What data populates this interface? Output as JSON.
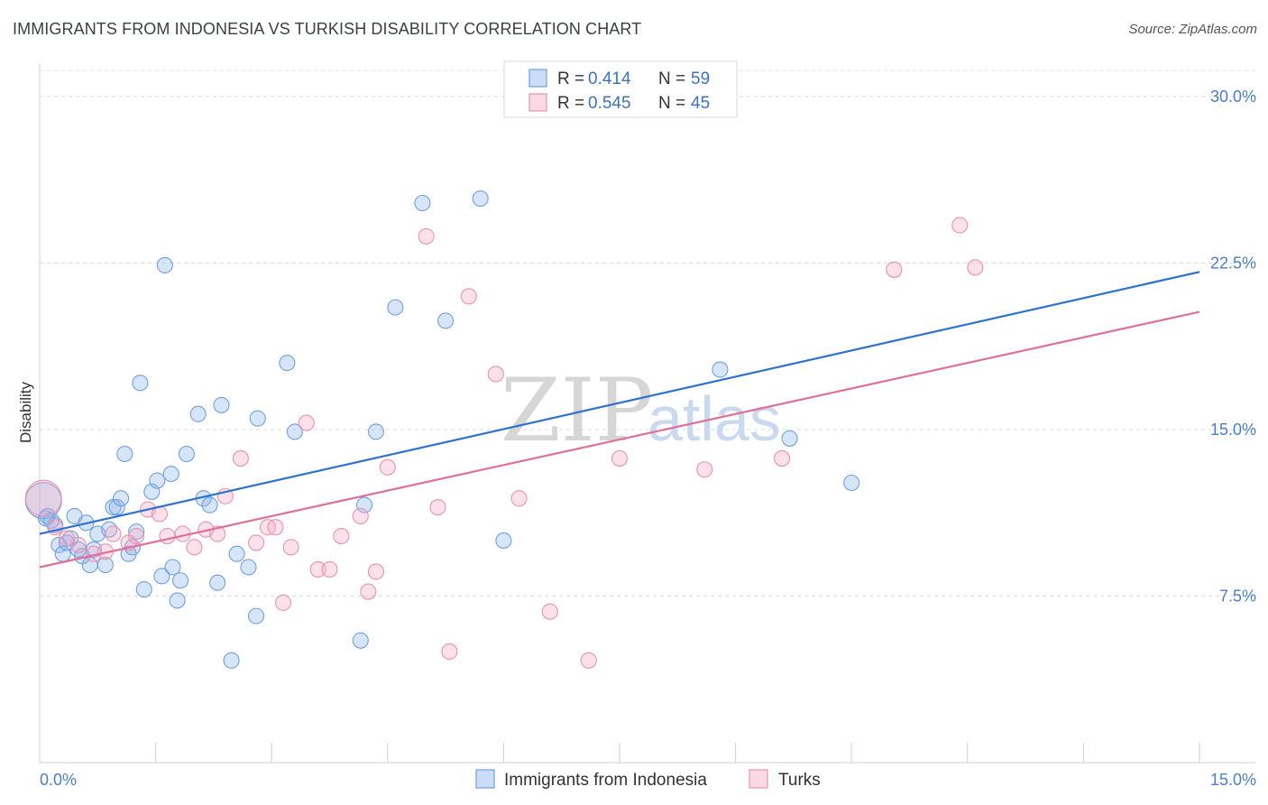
{
  "title": "IMMIGRANTS FROM INDONESIA VS TURKISH DISABILITY CORRELATION CHART",
  "source": "Source: ZipAtlas.com",
  "watermark": {
    "zip": "ZIP",
    "atlas": "atlas"
  },
  "colors": {
    "blue": "#6fa0e0",
    "blue_fill": "rgba(140,180,235,0.35)",
    "blue_line": "#2e72cf",
    "pink": "#e992b0",
    "pink_fill": "rgba(245,170,195,0.35)",
    "pink_line": "#e0709a"
  },
  "legend_top": {
    "rows": [
      {
        "r_label": "R =",
        "r_value": "0.414",
        "n_label": "N =",
        "n_value": "59"
      },
      {
        "r_label": "R =",
        "r_value": "0.545",
        "n_label": "N =",
        "n_value": "45"
      }
    ]
  },
  "legend_bottom": [
    "Immigrants from Indonesia",
    "Turks"
  ],
  "chart_data": {
    "type": "scatter",
    "title": "IMMIGRANTS FROM INDONESIA VS TURKISH DISABILITY CORRELATION CHART",
    "xlabel": "",
    "ylabel": "Disability",
    "xlim": [
      0,
      15
    ],
    "ylim": [
      0,
      31.5
    ],
    "x_tick_labels": [
      "0.0%",
      "15.0%"
    ],
    "y_ticks": [
      7.5,
      15.0,
      22.5,
      30.0
    ],
    "y_tick_labels": [
      "7.5%",
      "15.0%",
      "22.5%",
      "30.0%"
    ],
    "grid": true,
    "legend_position": "bottom",
    "series": [
      {
        "name": "Immigrants from Indonesia",
        "r": 0.414,
        "n": 59,
        "trend": {
          "x": [
            0,
            15
          ],
          "y": [
            10.3,
            22.1
          ]
        },
        "points": [
          [
            0.05,
            11.8,
            3
          ],
          [
            0.1,
            11.1,
            1
          ],
          [
            0.2,
            10.7,
            1
          ],
          [
            0.25,
            9.8,
            1
          ],
          [
            0.3,
            9.4,
            1
          ],
          [
            0.35,
            9.9,
            1
          ],
          [
            0.45,
            11.1,
            1
          ],
          [
            0.5,
            9.6,
            1
          ],
          [
            0.55,
            9.3,
            1
          ],
          [
            0.6,
            10.8,
            1
          ],
          [
            0.65,
            8.9,
            1
          ],
          [
            0.7,
            9.6,
            1
          ],
          [
            0.75,
            10.3,
            1
          ],
          [
            0.85,
            8.9,
            1
          ],
          [
            0.9,
            10.5,
            1
          ],
          [
            0.95,
            11.5,
            1
          ],
          [
            1.0,
            11.5,
            1
          ],
          [
            1.05,
            11.9,
            1
          ],
          [
            1.1,
            13.9,
            1
          ],
          [
            1.15,
            9.4,
            1
          ],
          [
            1.2,
            9.7,
            1
          ],
          [
            1.25,
            10.4,
            1
          ],
          [
            1.3,
            17.1,
            1
          ],
          [
            1.35,
            7.8,
            1
          ],
          [
            1.45,
            12.2,
            1
          ],
          [
            1.52,
            12.7,
            1
          ],
          [
            1.58,
            8.4,
            1
          ],
          [
            1.62,
            22.4,
            1
          ],
          [
            1.7,
            13.0,
            1
          ],
          [
            1.72,
            8.8,
            1
          ],
          [
            1.78,
            7.3,
            1
          ],
          [
            1.82,
            8.2,
            1
          ],
          [
            1.9,
            13.9,
            1
          ],
          [
            2.05,
            15.7,
            1
          ],
          [
            2.12,
            11.9,
            1
          ],
          [
            2.2,
            11.6,
            1
          ],
          [
            2.3,
            8.1,
            1
          ],
          [
            2.35,
            16.1,
            1
          ],
          [
            2.48,
            4.6,
            1
          ],
          [
            2.55,
            9.4,
            1
          ],
          [
            2.7,
            8.8,
            1
          ],
          [
            2.8,
            6.6,
            1
          ],
          [
            2.82,
            15.5,
            1
          ],
          [
            3.2,
            18.0,
            1
          ],
          [
            3.3,
            14.9,
            1
          ],
          [
            4.15,
            5.5,
            1
          ],
          [
            4.2,
            11.6,
            1
          ],
          [
            4.35,
            14.9,
            1
          ],
          [
            4.6,
            20.5,
            1
          ],
          [
            4.95,
            25.2,
            1
          ],
          [
            5.25,
            19.9,
            1
          ],
          [
            5.7,
            25.4,
            1
          ],
          [
            6.0,
            10.0,
            1
          ],
          [
            8.8,
            17.7,
            1
          ],
          [
            9.7,
            14.6,
            1
          ],
          [
            10.5,
            12.6,
            1
          ],
          [
            0.08,
            11.0,
            1
          ],
          [
            0.4,
            10.1,
            1
          ],
          [
            0.15,
            10.9,
            1
          ]
        ]
      },
      {
        "name": "Turks",
        "r": 0.545,
        "n": 45,
        "trend": {
          "x": [
            0,
            15
          ],
          "y": [
            8.8,
            20.3
          ]
        },
        "points": [
          [
            0.05,
            11.9,
            3
          ],
          [
            0.2,
            10.6,
            1
          ],
          [
            0.5,
            9.8,
            1
          ],
          [
            0.7,
            9.4,
            1
          ],
          [
            0.95,
            10.3,
            1
          ],
          [
            1.15,
            9.9,
            1
          ],
          [
            1.25,
            10.2,
            1
          ],
          [
            1.4,
            11.4,
            1
          ],
          [
            1.55,
            11.2,
            1
          ],
          [
            1.65,
            10.2,
            1
          ],
          [
            1.85,
            10.3,
            1
          ],
          [
            2.0,
            9.7,
            1
          ],
          [
            2.15,
            10.5,
            1
          ],
          [
            2.3,
            10.3,
            1
          ],
          [
            2.4,
            12.0,
            1
          ],
          [
            2.6,
            13.7,
            1
          ],
          [
            2.8,
            9.9,
            1
          ],
          [
            2.95,
            10.6,
            1
          ],
          [
            3.05,
            10.6,
            1
          ],
          [
            3.15,
            7.2,
            1
          ],
          [
            3.25,
            9.7,
            1
          ],
          [
            3.45,
            15.3,
            1
          ],
          [
            3.6,
            8.7,
            1
          ],
          [
            3.75,
            8.7,
            1
          ],
          [
            3.9,
            10.2,
            1
          ],
          [
            4.15,
            11.1,
            1
          ],
          [
            4.25,
            7.7,
            1
          ],
          [
            4.35,
            8.6,
            1
          ],
          [
            4.5,
            13.3,
            1
          ],
          [
            5.0,
            23.7,
            1
          ],
          [
            5.15,
            11.5,
            1
          ],
          [
            5.3,
            5.0,
            1
          ],
          [
            5.55,
            21.0,
            1
          ],
          [
            5.9,
            17.5,
            1
          ],
          [
            6.2,
            11.9,
            1
          ],
          [
            6.6,
            6.8,
            1
          ],
          [
            7.1,
            4.6,
            1
          ],
          [
            7.5,
            13.7,
            1
          ],
          [
            8.6,
            13.2,
            1
          ],
          [
            9.6,
            13.7,
            1
          ],
          [
            11.05,
            22.2,
            1
          ],
          [
            11.9,
            24.2,
            1
          ],
          [
            12.1,
            22.3,
            1
          ],
          [
            0.35,
            10.1,
            1
          ],
          [
            0.85,
            9.5,
            1
          ]
        ]
      }
    ]
  }
}
